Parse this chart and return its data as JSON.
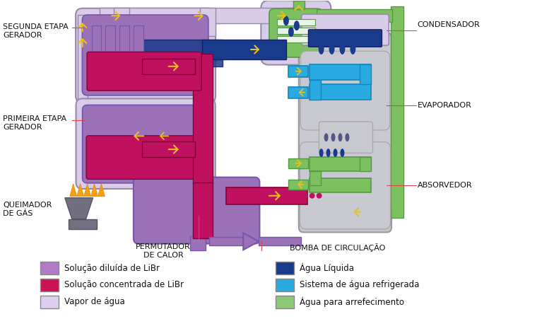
{
  "legend_items_left": [
    {
      "label": "Solução diluída de LiBr",
      "color": "#b07cc6"
    },
    {
      "label": "Solução concentrada de LiBr",
      "color": "#cc1155"
    },
    {
      "label": "Vapor de água",
      "color": "#ddd0ee"
    }
  ],
  "legend_items_right": [
    {
      "label": "Água Líquida",
      "color": "#1a3a8c"
    },
    {
      "label": "Sistema de água refrigerada",
      "color": "#29abe2"
    },
    {
      "label": "Água para arrefecimento",
      "color": "#8dc878"
    }
  ],
  "bg_color": "#ffffff",
  "c_dilute": "#9b72b8",
  "c_dilute2": "#b48ac8",
  "c_conc": "#c01060",
  "c_vapor": "#d8cce8",
  "c_water": "#1a3a8c",
  "c_refrig": "#29abe2",
  "c_cool": "#7dc060",
  "c_cool_border": "#559944",
  "c_gray": "#888898",
  "c_lgray": "#c8c8d0",
  "c_arrow": "#e8c020",
  "c_pipe_dark": "#880040"
}
